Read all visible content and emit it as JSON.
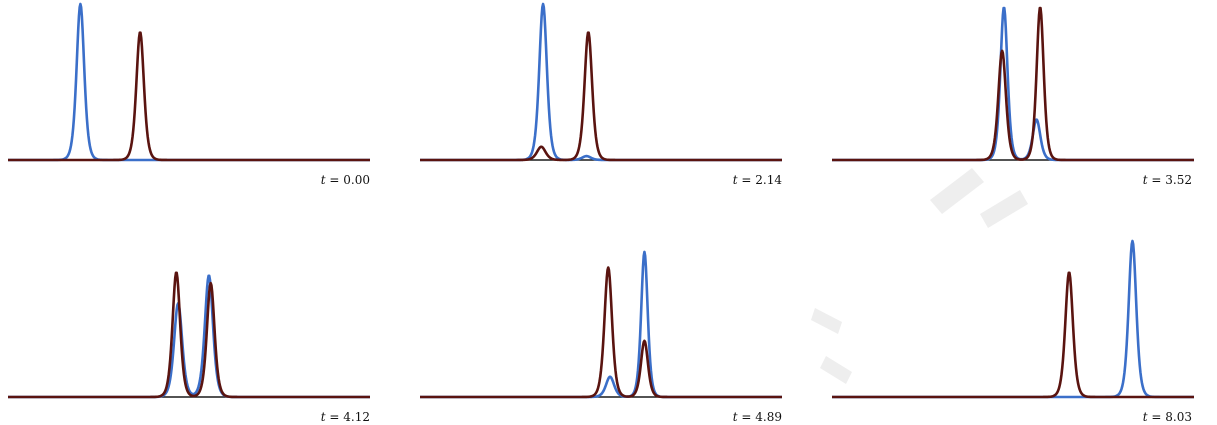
{
  "figure": {
    "panel_count": 6
  },
  "chart_data": [
    {
      "type": "line",
      "annotation": "t = 0.00",
      "t_var": "t",
      "t_value": "0.00",
      "colors": {
        "blue": "#3b6fc9",
        "brown": "#5a1410"
      },
      "series": [
        {
          "color_key": "blue",
          "peaks": [
            {
              "x": 0.2,
              "y": 1.0,
              "w": 0.014
            }
          ]
        },
        {
          "color_key": "brown",
          "peaks": [
            {
              "x": 0.365,
              "y": 0.82,
              "w": 0.014
            }
          ]
        }
      ]
    },
    {
      "type": "line",
      "annotation": "t = 2.14",
      "t_var": "t",
      "t_value": "2.14",
      "colors": {
        "blue": "#3b6fc9",
        "brown": "#5a1410"
      },
      "series": [
        {
          "color_key": "blue",
          "peaks": [
            {
              "x": 0.34,
              "y": 1.0,
              "w": 0.014
            },
            {
              "x": 0.46,
              "y": 0.025,
              "w": 0.016
            }
          ]
        },
        {
          "color_key": "brown",
          "peaks": [
            {
              "x": 0.465,
              "y": 0.82,
              "w": 0.014
            },
            {
              "x": 0.335,
              "y": 0.085,
              "w": 0.016
            }
          ]
        }
      ]
    },
    {
      "type": "line",
      "annotation": "t = 3.52",
      "t_var": "t",
      "t_value": "3.52",
      "colors": {
        "blue": "#3b6fc9",
        "brown": "#5a1410"
      },
      "series": [
        {
          "color_key": "blue",
          "peaks": [
            {
              "x": 0.475,
              "y": 0.98,
              "w": 0.013
            },
            {
              "x": 0.565,
              "y": 0.26,
              "w": 0.014
            }
          ]
        },
        {
          "color_key": "brown",
          "peaks": [
            {
              "x": 0.575,
              "y": 0.98,
              "w": 0.013
            },
            {
              "x": 0.47,
              "y": 0.7,
              "w": 0.014
            }
          ]
        }
      ]
    },
    {
      "type": "line",
      "annotation": "t = 4.12",
      "t_var": "t",
      "t_value": "4.12",
      "colors": {
        "blue": "#3b6fc9",
        "brown": "#5a1410"
      },
      "series": [
        {
          "color_key": "blue",
          "peaks": [
            {
              "x": 0.47,
              "y": 0.6,
              "w": 0.015
            },
            {
              "x": 0.555,
              "y": 0.78,
              "w": 0.015
            }
          ]
        },
        {
          "color_key": "brown",
          "peaks": [
            {
              "x": 0.465,
              "y": 0.8,
              "w": 0.014
            },
            {
              "x": 0.56,
              "y": 0.73,
              "w": 0.014
            }
          ]
        }
      ]
    },
    {
      "type": "line",
      "annotation": "t = 4.89",
      "t_var": "t",
      "t_value": "4.89",
      "colors": {
        "blue": "#3b6fc9",
        "brown": "#5a1410"
      },
      "series": [
        {
          "color_key": "blue",
          "peaks": [
            {
              "x": 0.62,
              "y": 0.93,
              "w": 0.012
            },
            {
              "x": 0.525,
              "y": 0.13,
              "w": 0.015
            }
          ]
        },
        {
          "color_key": "brown",
          "peaks": [
            {
              "x": 0.52,
              "y": 0.83,
              "w": 0.014
            },
            {
              "x": 0.62,
              "y": 0.36,
              "w": 0.013
            }
          ]
        }
      ]
    },
    {
      "type": "line",
      "annotation": "t = 8.03",
      "t_var": "t",
      "t_value": "8.03",
      "colors": {
        "blue": "#3b6fc9",
        "brown": "#5a1410"
      },
      "series": [
        {
          "color_key": "blue",
          "peaks": [
            {
              "x": 0.83,
              "y": 1.0,
              "w": 0.014
            }
          ]
        },
        {
          "color_key": "brown",
          "peaks": [
            {
              "x": 0.655,
              "y": 0.8,
              "w": 0.014
            }
          ]
        }
      ]
    }
  ]
}
